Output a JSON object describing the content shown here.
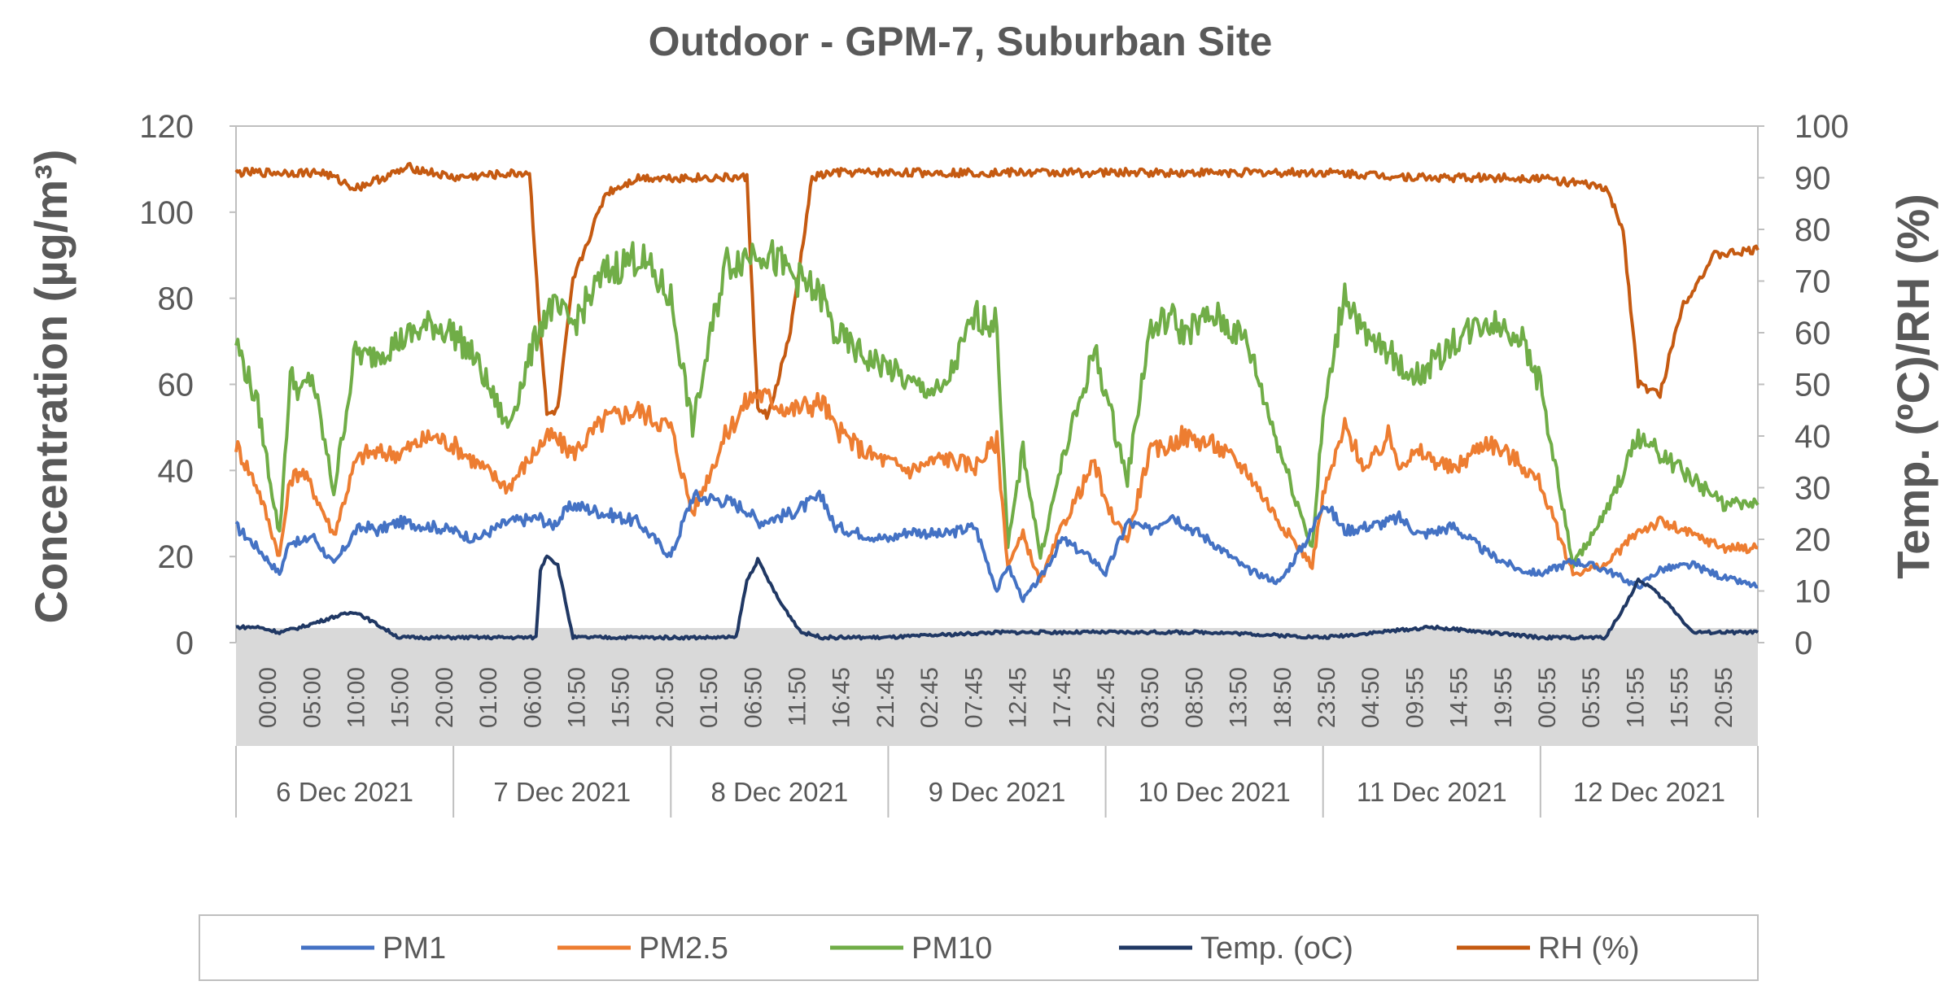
{
  "chart_data": {
    "type": "line",
    "title": "Outdoor - GPM-7, Suburban Site",
    "ylabel": "Concentration (µg/m³)",
    "y2label": "Temp. (ºC)/RH (%)",
    "ylim": [
      0,
      120
    ],
    "y2lim": [
      0,
      100
    ],
    "yticks": [
      "0",
      "20",
      "40",
      "60",
      "80",
      "100",
      "120"
    ],
    "y2ticks": [
      "0",
      "10",
      "20",
      "30",
      "40",
      "50",
      "60",
      "70",
      "80",
      "90",
      "100"
    ],
    "x_tick_labels": [
      "00:00",
      "05:00",
      "10:00",
      "15:00",
      "20:00",
      "01:00",
      "06:00",
      "10:50",
      "15:50",
      "20:50",
      "01:50",
      "06:50",
      "11:50",
      "16:45",
      "21:45",
      "02:45",
      "07:45",
      "12:45",
      "17:45",
      "22:45",
      "03:50",
      "08:50",
      "13:50",
      "18:50",
      "23:50",
      "04:50",
      "09:55",
      "14:55",
      "19:55",
      "00:55",
      "05:55",
      "10:55",
      "15:55",
      "20:55"
    ],
    "days": [
      "6 Dec 2021",
      "7 Dec 2021",
      "8 Dec 2021",
      "9 Dec 2021",
      "10 Dec 2021",
      "11 Dec 2021",
      "12 Dec 2021"
    ],
    "x_unit": "day index (0 = 6 Dec 2021 00:00)",
    "grid": false,
    "legend_position": "bottom",
    "series": [
      {
        "name": "PM1",
        "axis": "left",
        "color": "#4472C4",
        "x": [
          0,
          0.1,
          0.2,
          0.25,
          0.3,
          0.35,
          0.45,
          0.55,
          0.6,
          0.65,
          0.75,
          0.9,
          1,
          1.1,
          1.25,
          1.4,
          1.45,
          1.55,
          1.7,
          1.85,
          2,
          2.1,
          2.25,
          2.35,
          2.4,
          2.55,
          2.7,
          2.75,
          2.9,
          3,
          3.1,
          3.25,
          3.4,
          3.5,
          3.55,
          3.62,
          3.7,
          3.8,
          3.95,
          4,
          4.1,
          4.2,
          4.3,
          4.35,
          4.5,
          4.65,
          4.8,
          4.95,
          5,
          5.1,
          5.2,
          5.3,
          5.35,
          5.45,
          5.6,
          5.75,
          5.9,
          6,
          6.15,
          6.3,
          6.45,
          6.55,
          6.7,
          6.85,
          7
        ],
        "y": [
          27,
          22,
          16,
          24,
          23,
          25,
          18,
          26,
          27,
          26,
          28,
          27,
          26,
          24,
          28,
          29,
          27,
          32,
          30,
          28,
          20,
          34,
          33,
          31,
          28,
          30,
          34,
          27,
          25,
          24,
          26,
          25,
          27,
          12,
          18,
          10,
          15,
          24,
          19,
          16,
          28,
          26,
          30,
          28,
          23,
          17,
          14,
          26,
          33,
          26,
          27,
          28,
          29,
          25,
          27,
          21,
          17,
          16,
          19,
          17,
          13,
          17,
          18,
          15,
          13
        ]
      },
      {
        "name": "PM2.5",
        "axis": "left",
        "color": "#ED7D31",
        "x": [
          0,
          0.1,
          0.2,
          0.25,
          0.3,
          0.35,
          0.45,
          0.55,
          0.6,
          0.75,
          0.9,
          1,
          1.1,
          1.25,
          1.4,
          1.45,
          1.55,
          1.7,
          1.85,
          2,
          2.1,
          2.25,
          2.35,
          2.4,
          2.55,
          2.7,
          2.75,
          2.9,
          3,
          3.1,
          3.25,
          3.4,
          3.5,
          3.55,
          3.62,
          3.7,
          3.8,
          3.95,
          4,
          4.1,
          4.2,
          4.3,
          4.35,
          4.5,
          4.65,
          4.8,
          4.95,
          5,
          5.1,
          5.2,
          5.3,
          5.35,
          5.45,
          5.6,
          5.75,
          5.9,
          6,
          6.15,
          6.3,
          6.45,
          6.55,
          6.7,
          6.85,
          7
        ],
        "y": [
          46,
          36,
          20,
          38,
          40,
          36,
          25,
          42,
          44,
          44,
          48,
          46,
          42,
          36,
          46,
          48,
          44,
          52,
          54,
          50,
          30,
          48,
          56,
          58,
          54,
          56,
          50,
          44,
          42,
          40,
          43,
          41,
          47,
          18,
          25,
          14,
          27,
          42,
          32,
          24,
          44,
          46,
          48,
          46,
          40,
          28,
          18,
          34,
          50,
          40,
          48,
          42,
          44,
          40,
          47,
          42,
          37,
          16,
          18,
          26,
          28,
          25,
          22,
          22
        ]
      },
      {
        "name": "PM10",
        "axis": "left",
        "color": "#70AD47",
        "x": [
          0,
          0.1,
          0.2,
          0.25,
          0.3,
          0.35,
          0.45,
          0.55,
          0.6,
          0.75,
          0.9,
          1,
          1.1,
          1.25,
          1.4,
          1.45,
          1.55,
          1.7,
          1.85,
          2,
          2.1,
          2.25,
          2.35,
          2.4,
          2.55,
          2.7,
          2.75,
          2.9,
          3,
          3.1,
          3.25,
          3.4,
          3.5,
          3.55,
          3.62,
          3.7,
          3.8,
          3.95,
          4,
          4.1,
          4.2,
          4.3,
          4.35,
          4.5,
          4.65,
          4.8,
          4.95,
          5,
          5.1,
          5.2,
          5.3,
          5.35,
          5.45,
          5.6,
          5.75,
          5.9,
          6,
          6.15,
          6.3,
          6.45,
          6.55,
          6.7,
          6.85,
          7
        ],
        "y": [
          70,
          55,
          25,
          62,
          58,
          62,
          35,
          68,
          66,
          70,
          74,
          72,
          66,
          50,
          74,
          78,
          74,
          86,
          90,
          80,
          50,
          88,
          90,
          92,
          86,
          80,
          72,
          66,
          64,
          60,
          58,
          76,
          74,
          22,
          45,
          20,
          42,
          68,
          58,
          38,
          72,
          76,
          72,
          76,
          70,
          45,
          22,
          52,
          82,
          70,
          68,
          64,
          62,
          70,
          75,
          72,
          60,
          18,
          30,
          48,
          44,
          38,
          32,
          32
        ]
      },
      {
        "name": "Temp. (oC)",
        "axis": "right",
        "color": "#203864",
        "x": [
          0,
          0.1,
          0.2,
          0.3,
          0.45,
          0.55,
          0.75,
          0.9,
          1,
          1.2,
          1.38,
          1.4,
          1.43,
          1.48,
          1.55,
          1.7,
          2,
          2.3,
          2.35,
          2.4,
          2.5,
          2.6,
          2.7,
          3,
          3.5,
          4,
          4.5,
          5,
          5.5,
          6,
          6.3,
          6.4,
          6.45,
          6.5,
          6.6,
          6.7,
          7
        ],
        "y": [
          3,
          3,
          2,
          3,
          5,
          6,
          1,
          1,
          1,
          1,
          1,
          14,
          17,
          15,
          1,
          1,
          1,
          1,
          12,
          16,
          8,
          2,
          1,
          1,
          2,
          2,
          2,
          1,
          3,
          1,
          1,
          8,
          12,
          11,
          7,
          2,
          2
        ]
      },
      {
        "name": "RH (%)",
        "axis": "right",
        "color": "#C55A11",
        "x": [
          0,
          0.4,
          0.55,
          0.8,
          1,
          1.35,
          1.4,
          1.43,
          1.48,
          1.55,
          1.7,
          1.85,
          2.2,
          2.35,
          2.4,
          2.45,
          2.55,
          2.65,
          2.75,
          3,
          3.5,
          4,
          4.5,
          5,
          5.5,
          6,
          6.3,
          6.38,
          6.45,
          6.55,
          6.65,
          6.8,
          7
        ],
        "y": [
          91,
          91,
          88,
          92,
          90,
          91,
          60,
          44,
          45,
          70,
          87,
          90,
          90,
          90,
          45,
          44,
          60,
          90,
          91,
          91,
          91,
          91,
          91,
          91,
          90,
          90,
          88,
          80,
          50,
          48,
          65,
          75,
          76
        ]
      }
    ],
    "legend": [
      "PM1",
      "PM2.5",
      "PM10",
      "Temp. (oC)",
      "RH (%)"
    ]
  }
}
